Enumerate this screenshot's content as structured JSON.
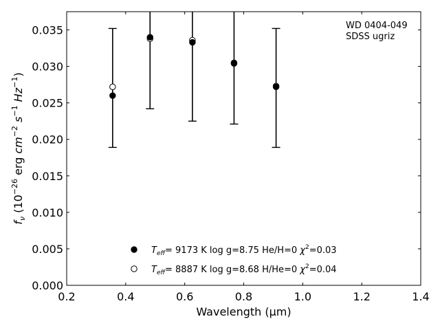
{
  "chart_data": {
    "type": "scatter",
    "xlabel": "Wavelength (μm)",
    "ylabel_parts": [
      "f",
      "ν",
      " (10",
      "−26",
      " erg ",
      "cm",
      "−2",
      " ",
      "s",
      "−1",
      " ",
      "Hz",
      "−1",
      ")"
    ],
    "xlim": [
      0.2,
      1.4
    ],
    "ylim": [
      0.0,
      0.0375
    ],
    "xticks": [
      "0.2",
      "0.4",
      "0.6",
      "0.8",
      "1.0",
      "1.2",
      "1.4"
    ],
    "yticks": [
      "0.000",
      "0.005",
      "0.010",
      "0.015",
      "0.020",
      "0.025",
      "0.030",
      "0.035"
    ],
    "grid": false,
    "legend_position": "bottom-center",
    "annotation": [
      "WD 0404-049",
      "SDSS ugriz"
    ],
    "observed": {
      "x": [
        0.3557,
        0.4825,
        0.6261,
        0.7672,
        0.9097
      ],
      "y": [
        0.026,
        0.034,
        0.0333,
        0.0304,
        0.0272
      ],
      "err_low": [
        0.0189,
        0.0242,
        0.0225,
        0.0221,
        0.0189
      ],
      "err_high": [
        0.0352,
        0.0375,
        0.0375,
        0.0375,
        0.0352
      ]
    },
    "series": [
      {
        "marker": "filled",
        "label": {
          "a": "T",
          "b": "eff",
          "c": "=  9173 K  log g=8.75  He/H=0  ",
          "d": "χ",
          "e": "2",
          "f": "=0.03"
        },
        "values": [
          0.026,
          0.034,
          0.0333,
          0.0304,
          0.0272
        ]
      },
      {
        "marker": "open",
        "label": {
          "a": "T",
          "b": "eff",
          "c": "=  8887 K  log g=8.68  H/He=0  ",
          "d": "χ",
          "e": "2",
          "f": "=0.04"
        },
        "values": [
          0.0272,
          0.0338,
          0.0336,
          0.0305,
          0.0273
        ]
      }
    ],
    "colors": {
      "marker": "#000000",
      "axes": "#000000",
      "background": "#ffffff"
    }
  }
}
